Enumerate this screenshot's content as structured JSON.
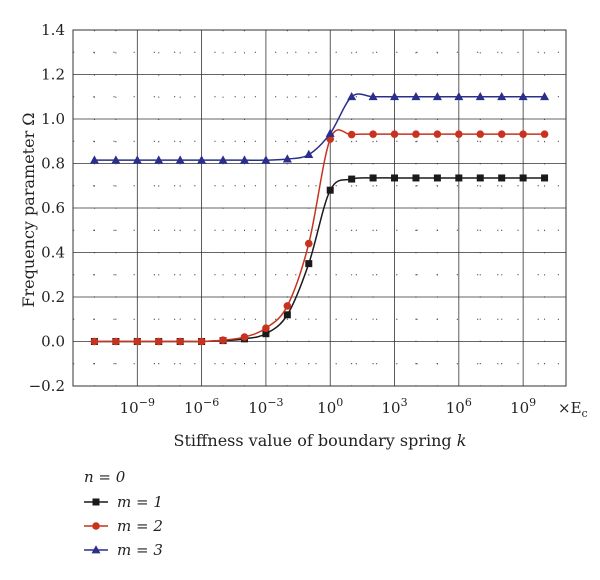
{
  "chart_data": {
    "type": "line",
    "xscale": "log",
    "xlabel_main": "Stiffness value of boundary spring",
    "xlabel_var": "k",
    "ylabel_main": "Frequency parameter",
    "ylabel_var": "Ω",
    "x_unit_suffix": "×E",
    "x_unit_sub": "c",
    "x_range_exp": [
      -12,
      11
    ],
    "ylim": [
      -0.2,
      1.4
    ],
    "y_ticks": [
      "1.4",
      "1.2",
      "1.0",
      "0.8",
      "0.6",
      "0.4",
      "0.2",
      "0.0",
      "−0.2"
    ],
    "x_tick_exponents": [
      "−9",
      "−6",
      "−3",
      "0",
      "3",
      "6",
      "9"
    ],
    "grid": true,
    "legend_placement": "bottom-left",
    "legend_title": "n = 0",
    "x_exponents": [
      -11,
      -10,
      -9,
      -8,
      -7,
      -6,
      -5,
      -4,
      -3,
      -2,
      -1,
      0,
      1,
      2,
      3,
      4,
      5,
      6,
      7,
      8,
      9,
      10
    ],
    "series": [
      {
        "name": "m = 1",
        "marker": "square",
        "color": "#1a1a1a",
        "values": [
          0.0,
          0.0,
          0.0,
          0.0,
          0.0,
          0.0,
          0.004,
          0.012,
          0.035,
          0.12,
          0.35,
          0.68,
          0.73,
          0.735,
          0.735,
          0.735,
          0.735,
          0.735,
          0.735,
          0.735,
          0.735,
          0.735
        ]
      },
      {
        "name": "m = 2",
        "marker": "circle",
        "color": "#c8321e",
        "values": [
          0.0,
          0.0,
          0.0,
          0.0,
          0.0,
          0.0,
          0.006,
          0.02,
          0.06,
          0.16,
          0.44,
          0.91,
          0.93,
          0.932,
          0.932,
          0.932,
          0.932,
          0.932,
          0.932,
          0.932,
          0.932,
          0.932
        ]
      },
      {
        "name": "m = 3",
        "marker": "triangle",
        "color": "#2b2f8c",
        "values": [
          0.815,
          0.815,
          0.815,
          0.815,
          0.815,
          0.815,
          0.815,
          0.815,
          0.815,
          0.82,
          0.84,
          0.935,
          1.1,
          1.1,
          1.1,
          1.1,
          1.1,
          1.1,
          1.1,
          1.1,
          1.1,
          1.1
        ]
      }
    ]
  }
}
